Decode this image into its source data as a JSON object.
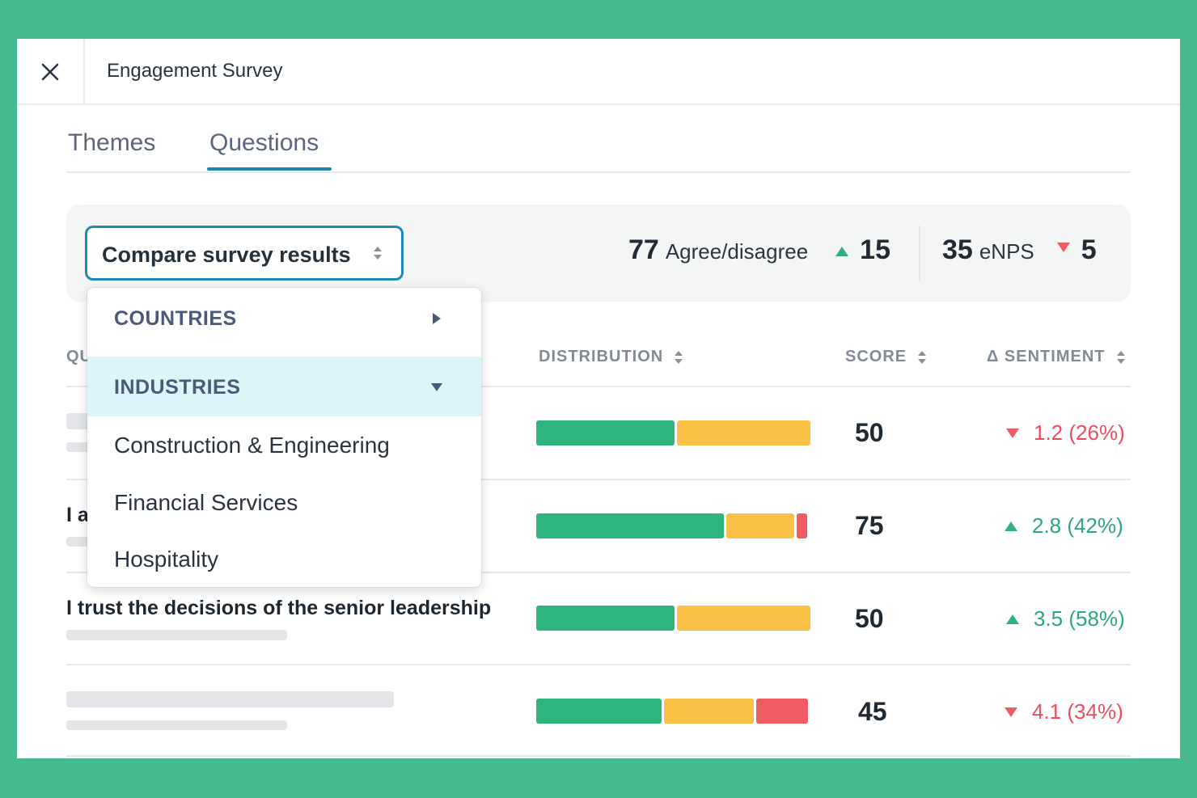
{
  "header": {
    "title": "Engagement Survey",
    "close_icon": "close-icon"
  },
  "tabs": [
    {
      "label": "Themes",
      "active": false
    },
    {
      "label": "Questions",
      "active": true
    }
  ],
  "colors": {
    "background": "#47b98e",
    "accent": "#1e86a6",
    "positive": "#2db47f",
    "neutral": "#fbc146",
    "negative": "#f05b64"
  },
  "filter": {
    "compare_label": "Compare survey results",
    "agree": {
      "value": "77",
      "label": "Agree/disagree",
      "delta": "15",
      "direction": "up"
    },
    "enps": {
      "value": "35",
      "label": "eNPS",
      "delta": "5",
      "direction": "down"
    }
  },
  "dropdown": {
    "groups": [
      {
        "label": "COUNTRIES",
        "expanded": false
      },
      {
        "label": "INDUSTRIES",
        "expanded": true
      }
    ],
    "options": [
      "Construction & Engineering",
      "Financial Services",
      "Hospitality"
    ]
  },
  "table": {
    "columns": {
      "question": "QUESTION",
      "distribution": "DISTRIBUTION",
      "score": "SCORE",
      "sentiment": "Δ SENTIMENT"
    },
    "rows": [
      {
        "question": "",
        "distribution": {
          "positive": 0.51,
          "neutral": 0.49,
          "negative": 0.0
        },
        "score": "50",
        "sentiment": "1.2 (26%)",
        "direction": "down"
      },
      {
        "question": "I a",
        "distribution": {
          "positive": 0.69,
          "neutral": 0.25,
          "negative": 0.04
        },
        "score": "75",
        "sentiment": "2.8 (42%)",
        "direction": "up"
      },
      {
        "question": "I trust the decisions of the senior leadership",
        "distribution": {
          "positive": 0.51,
          "neutral": 0.49,
          "negative": 0.0
        },
        "score": "50",
        "sentiment": "3.5 (58%)",
        "direction": "up"
      },
      {
        "question": "",
        "distribution": {
          "positive": 0.46,
          "neutral": 0.33,
          "negative": 0.19
        },
        "score": "45",
        "sentiment": "4.1 (34%)",
        "direction": "down"
      }
    ]
  }
}
